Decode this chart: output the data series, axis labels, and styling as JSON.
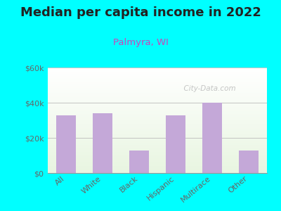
{
  "title": "Median per capita income in 2022",
  "subtitle": "Palmyra, WI",
  "categories": [
    "All",
    "White",
    "Black",
    "Hispanic",
    "Multirace",
    "Other"
  ],
  "values": [
    33000,
    34000,
    13000,
    33000,
    40000,
    13000
  ],
  "bar_color": "#c4a8d8",
  "background_outer": "#00FFFF",
  "title_color": "#222222",
  "subtitle_color": "#cc44bb",
  "tick_color": "#666666",
  "ylim": [
    0,
    60000
  ],
  "yticks": [
    0,
    20000,
    40000,
    60000
  ],
  "ytick_labels": [
    "$0",
    "$20k",
    "$40k",
    "$60k"
  ],
  "watermark": "  City-Data.com",
  "title_fontsize": 13,
  "subtitle_fontsize": 9.5,
  "tick_fontsize": 8
}
